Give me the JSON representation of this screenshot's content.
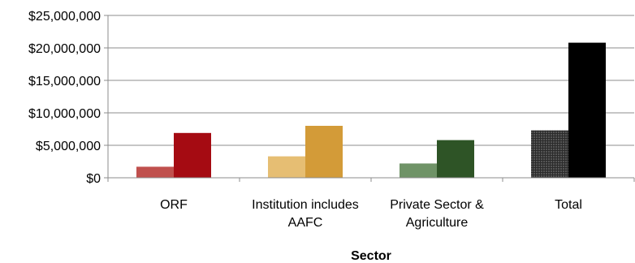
{
  "chart_data": {
    "type": "bar",
    "title": "",
    "xlabel": "Sector",
    "ylabel": "",
    "ylim": [
      0,
      25000000
    ],
    "yticks": [
      "$0",
      "$5,000,000",
      "$10,000,000",
      "$15,000,000",
      "$20,000,000",
      "$25,000,000"
    ],
    "ytick_values": [
      0,
      5000000,
      10000000,
      15000000,
      20000000,
      25000000
    ],
    "grid": true,
    "legend": "none",
    "categories": [
      {
        "lines": [
          "ORF"
        ]
      },
      {
        "lines": [
          "Institution includes",
          "AAFC"
        ]
      },
      {
        "lines": [
          "Private Sector &",
          "Agriculture"
        ]
      },
      {
        "lines": [
          "Total"
        ]
      }
    ],
    "series": [
      {
        "values": [
          1700000,
          3300000,
          2200000,
          7300000
        ],
        "colors": [
          "#c0504d",
          "#e6be73",
          "#6f9367",
          "#555555"
        ]
      },
      {
        "values": [
          6900000,
          8000000,
          5800000,
          20800000
        ],
        "colors": [
          "#a50b12",
          "#d39b38",
          "#2e5426",
          "#000000"
        ]
      }
    ]
  }
}
